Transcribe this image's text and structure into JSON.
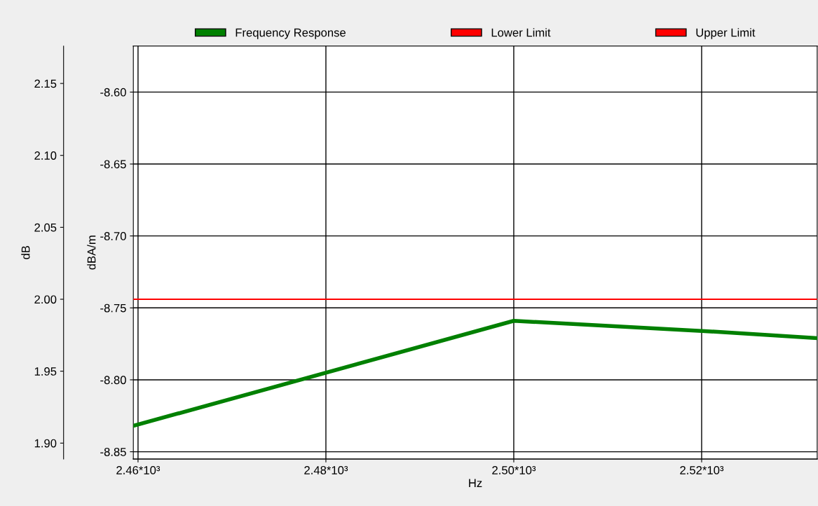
{
  "chart_data": {
    "type": "line",
    "xlabel": "Hz",
    "ylabel": "dBA/m",
    "y2label": "dB",
    "xlim": [
      2459.5,
      2532.3
    ],
    "xticks": [
      {
        "value": 2460,
        "label": "2.46*10³"
      },
      {
        "value": 2480,
        "label": "2.48*10³"
      },
      {
        "value": 2500,
        "label": "2.50*10³"
      },
      {
        "value": 2520,
        "label": "2.52*10³"
      }
    ],
    "ylim": [
      -8.855,
      -8.568
    ],
    "yticks": [
      -8.85,
      {
        "value": -8.8,
        "label": "-8.80"
      },
      -8.75,
      {
        "value": -8.7,
        "label": "-8.70"
      },
      -8.65,
      {
        "value": -8.6,
        "label": "-8.60"
      }
    ],
    "y2lim": [
      1.889,
      2.176
    ],
    "y2ticks": [
      {
        "value": 1.9,
        "label": "1.90"
      },
      1.95,
      {
        "value": 2.0,
        "label": "2.00"
      },
      2.05,
      {
        "value": 2.1,
        "label": "2.10"
      },
      2.15
    ],
    "grid": true,
    "legend": "top",
    "series": [
      {
        "name": "Frequency Response",
        "color": "#008000",
        "x": [
          2459.5,
          2500,
          2520,
          2532.3
        ],
        "values": [
          -8.832,
          -8.759,
          -8.766,
          -8.771
        ]
      },
      {
        "name": "Lower Limit",
        "color": "#ff0000",
        "axis": "y2"
      },
      {
        "name": "Upper Limit",
        "color": "#ff0000",
        "axis": "y2",
        "x": [
          2459.5,
          2500,
          2532.3
        ],
        "values": [
          2.0,
          2.0,
          2.0
        ]
      }
    ]
  }
}
